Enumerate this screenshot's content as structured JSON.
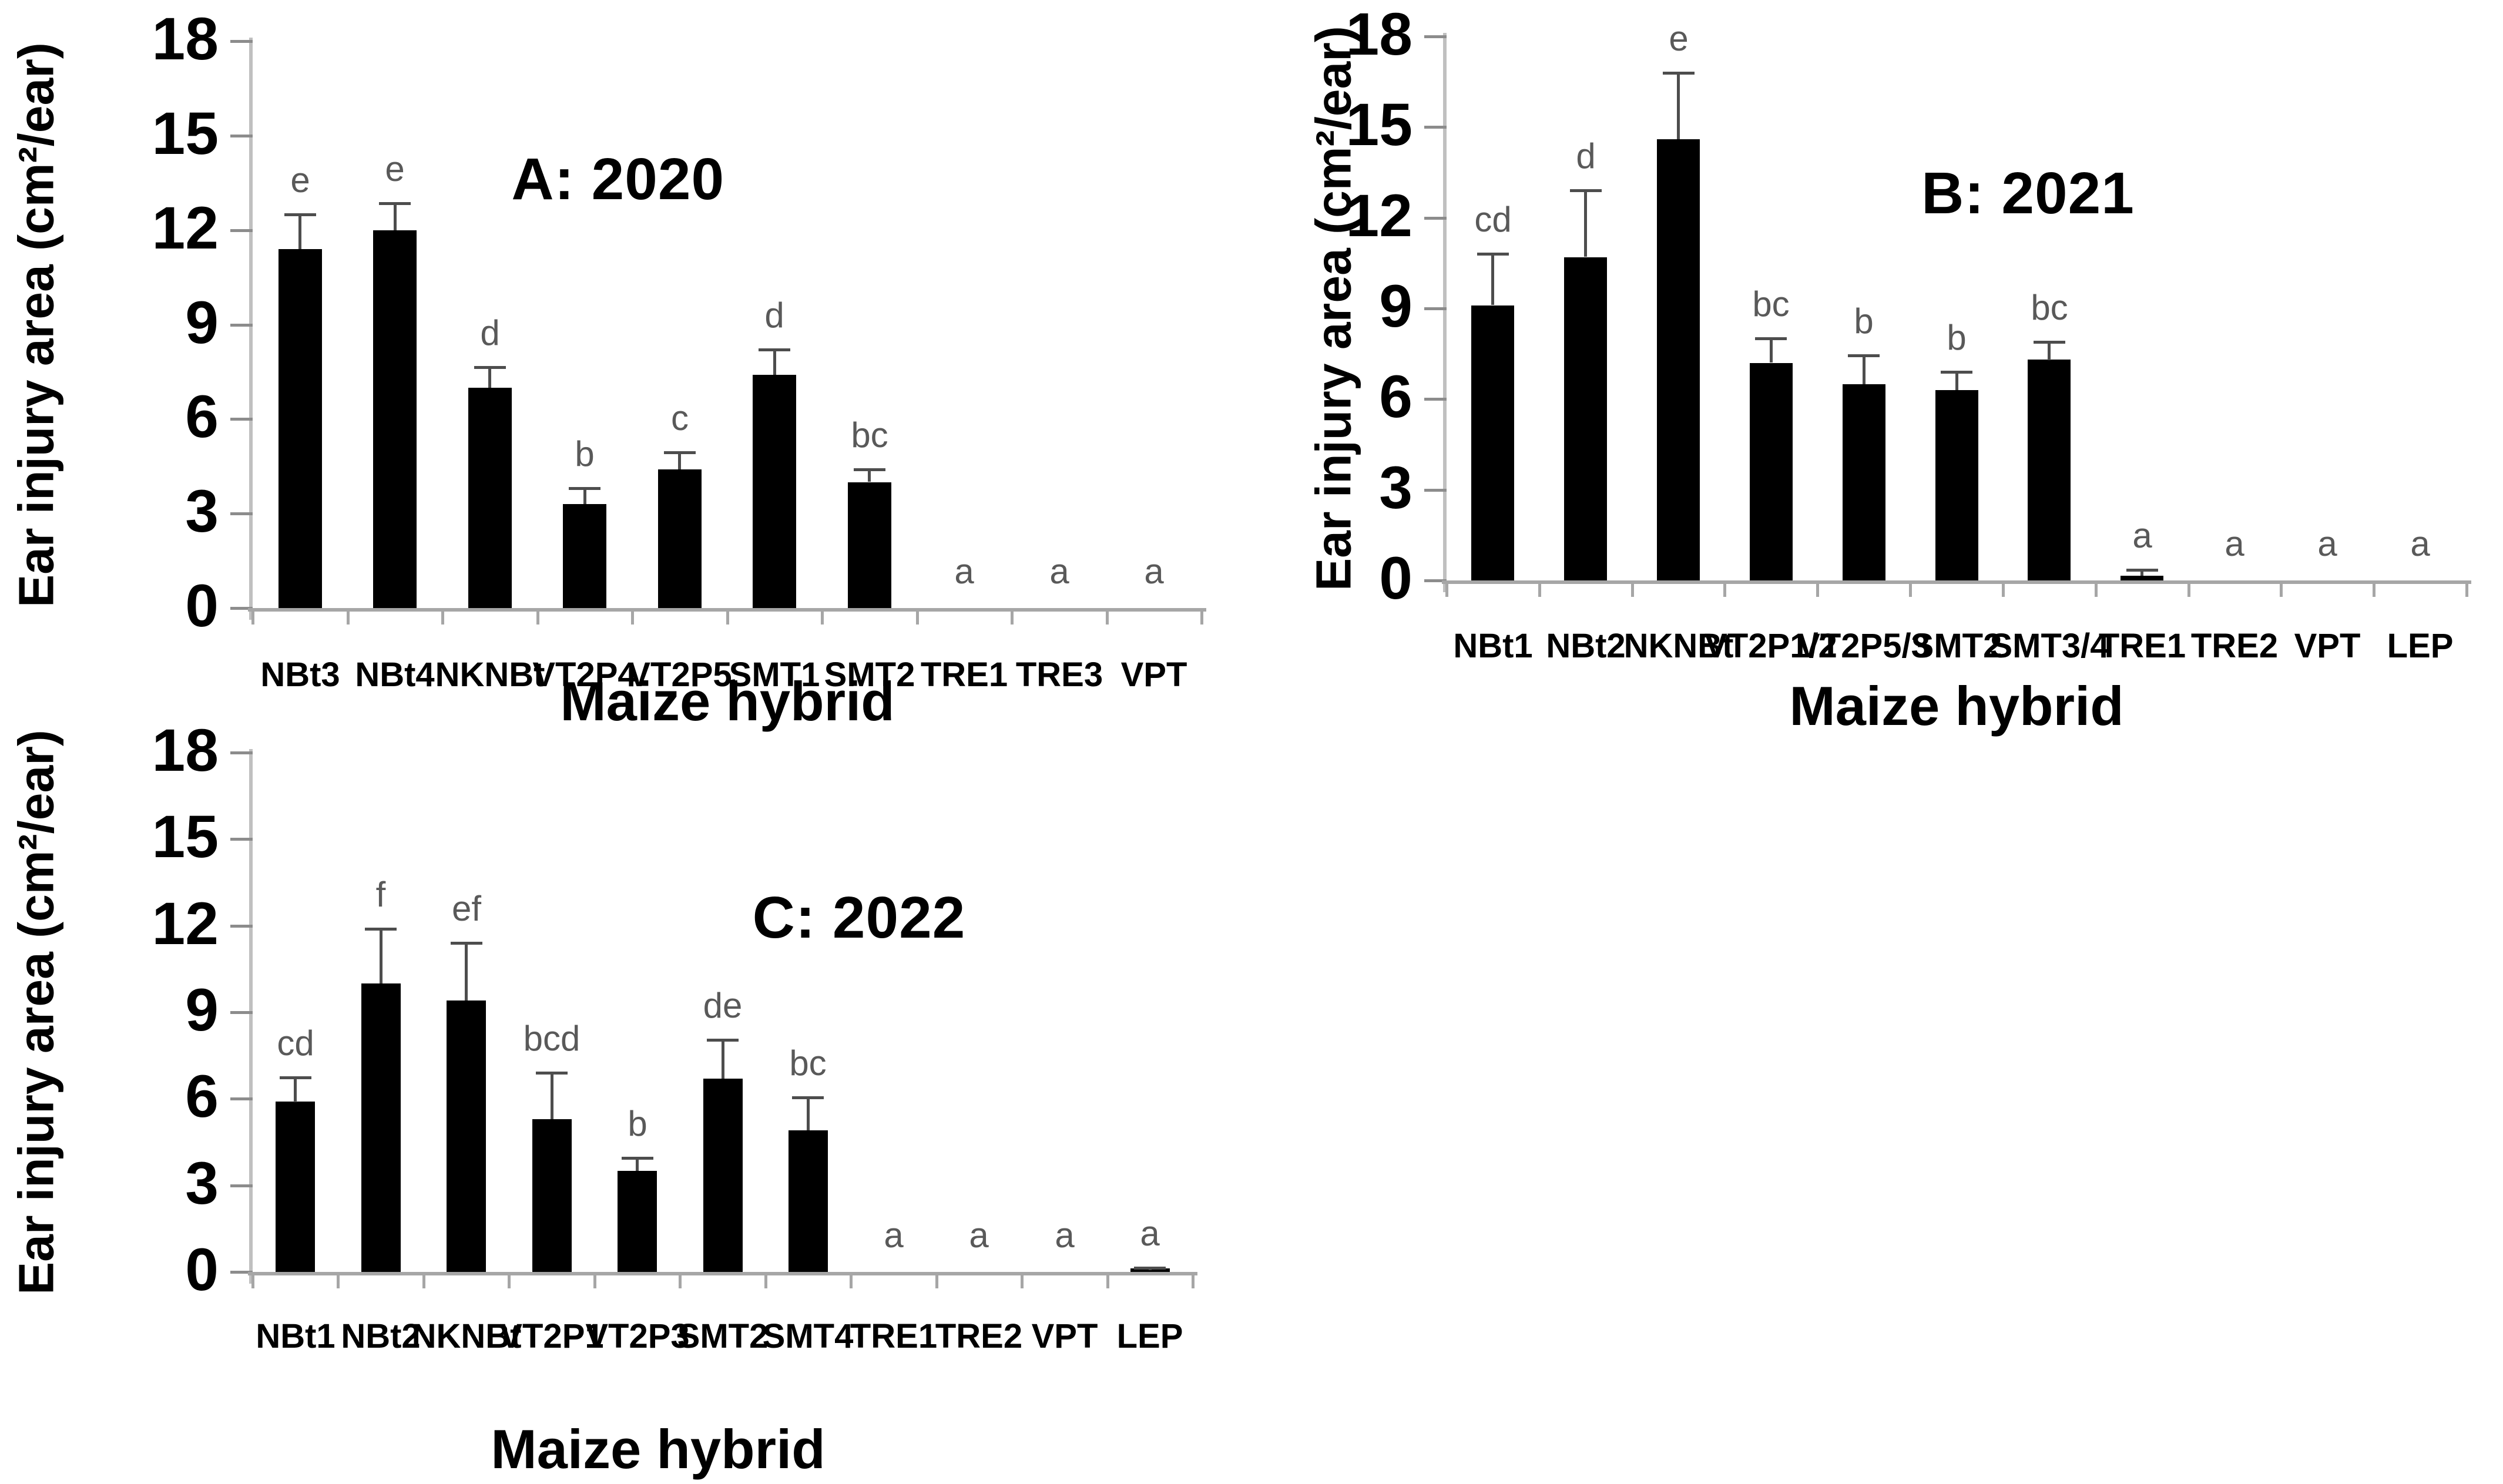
{
  "figure": {
    "background": "#ffffff",
    "bar_color": "#000000",
    "error_bar_color": "#4d4d4d",
    "sig_letter_color": "#595959",
    "axis_line_color": "#a6a6a6"
  },
  "chart_data": [
    {
      "type": "bar",
      "title": "A: 2020",
      "ylabel": "Ear injury area (cm²/ear)",
      "xlabel": "Maize hybrid",
      "ylim": [
        0,
        18
      ],
      "yticks": [
        0,
        3,
        6,
        9,
        12,
        15,
        18
      ],
      "grid": "off",
      "legend": "none",
      "categories": [
        "NBt3",
        "NBt4",
        "NKNBt",
        "VT2P4",
        "VT2P5",
        "SMT1",
        "SMT2",
        "TRE1",
        "TRE3",
        "VPT"
      ],
      "values": [
        11.4,
        12.0,
        7.0,
        3.3,
        4.4,
        7.4,
        4.0,
        0,
        0,
        0
      ],
      "errors_upper": [
        1.1,
        0.85,
        0.65,
        0.5,
        0.55,
        0.8,
        0.4,
        0,
        0,
        0
      ],
      "sig_letters": [
        "e",
        "e",
        "d",
        "b",
        "c",
        "d",
        "bc",
        "a",
        "a",
        "a"
      ]
    },
    {
      "type": "bar",
      "title": "B: 2021",
      "ylabel": "Ear injury area (cm²/ear)",
      "xlabel": "Maize hybrid",
      "ylim": [
        0,
        18
      ],
      "yticks": [
        0,
        3,
        6,
        9,
        12,
        15,
        18
      ],
      "grid": "off",
      "legend": "none",
      "categories": [
        "NBt1",
        "NBt2",
        "NKNBt",
        "VT2P1/2",
        "VT2P5/3",
        "SMT2",
        "SMT3/4",
        "TRE1",
        "TRE2",
        "VPT",
        "LEP"
      ],
      "values": [
        9.1,
        10.7,
        14.6,
        7.2,
        6.5,
        6.3,
        7.3,
        0.15,
        0,
        0,
        0
      ],
      "errors_upper": [
        1.7,
        2.2,
        2.2,
        0.8,
        0.95,
        0.6,
        0.6,
        0.2,
        0,
        0,
        0
      ],
      "sig_letters": [
        "cd",
        "d",
        "e",
        "bc",
        "b",
        "b",
        "bc",
        "a",
        "a",
        "a",
        "a"
      ]
    },
    {
      "type": "bar",
      "title": "C: 2022",
      "ylabel": "Ear injury area (cm²/ear)",
      "xlabel": "Maize hybrid",
      "ylim": [
        0,
        18
      ],
      "yticks": [
        0,
        3,
        6,
        9,
        12,
        15,
        18
      ],
      "grid": "off",
      "legend": "none",
      "categories": [
        "NBt1",
        "NBt2",
        "NKNBt",
        "VT2P1",
        "VT2P3",
        "SMT2",
        "SMT4",
        "TRE1",
        "TRE2",
        "VPT",
        "LEP"
      ],
      "values": [
        5.9,
        10.0,
        9.4,
        5.3,
        3.5,
        6.7,
        4.9,
        0,
        0,
        0,
        0.1
      ],
      "errors_upper": [
        0.85,
        1.9,
        2.0,
        1.6,
        0.45,
        1.35,
        1.15,
        0,
        0,
        0,
        0.05
      ],
      "sig_letters": [
        "cd",
        "f",
        "ef",
        "bcd",
        "b",
        "de",
        "bc",
        "a",
        "a",
        "a",
        "a"
      ]
    }
  ]
}
